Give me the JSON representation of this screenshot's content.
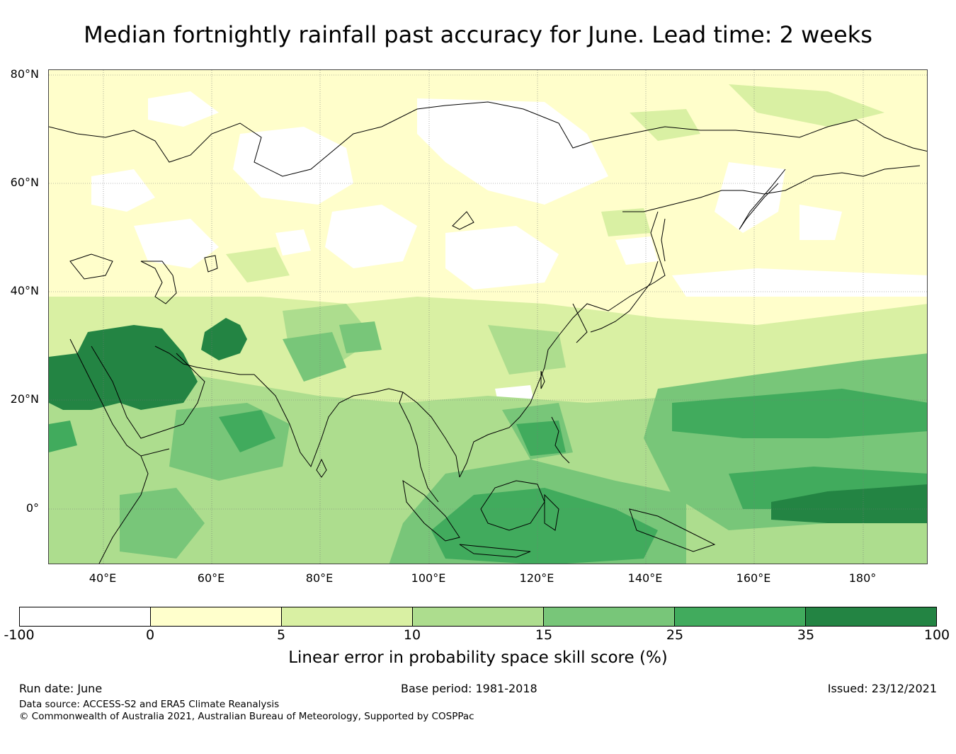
{
  "title": "Median fortnightly rainfall past accuracy for June. Lead time: 2 weeks",
  "map": {
    "lat_labels": [
      "80°N",
      "60°N",
      "40°N",
      "20°N",
      "0°"
    ],
    "lon_labels": [
      "40°E",
      "60°E",
      "80°E",
      "100°E",
      "120°E",
      "140°E",
      "160°E",
      "180°"
    ],
    "lon_range": [
      30,
      192
    ],
    "lat_range": [
      -10,
      81
    ]
  },
  "colorbar": {
    "ticks": [
      "-100",
      "0",
      "5",
      "10",
      "15",
      "25",
      "35",
      "100"
    ],
    "colors": [
      "#ffffff",
      "#ffffcc",
      "#d9f0a3",
      "#addd8e",
      "#78c679",
      "#41ab5d",
      "#238443"
    ],
    "label": "Linear error in probability space skill score (%)"
  },
  "footer": {
    "run_date": "Run date: June",
    "base_period": "Base period: 1981-2018",
    "issued": "Issued: 23/12/2021",
    "data_source": "Data source: ACCESS-S2 and ERA5 Climate Reanalysis",
    "copyright": "© Commonwealth of Australia 2021, Australian Bureau of Meteorology, Supported by COSPPac"
  }
}
